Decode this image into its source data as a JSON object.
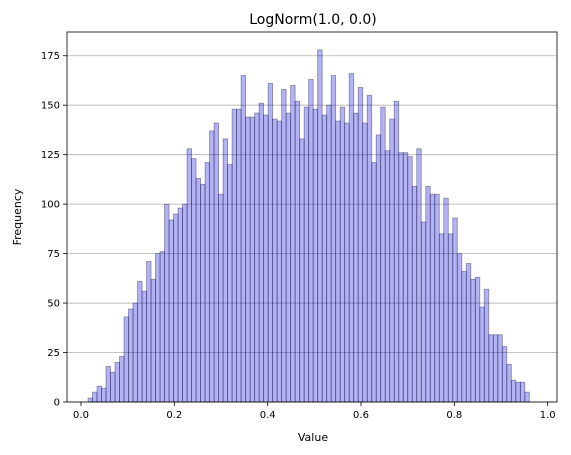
{
  "chart_data": {
    "type": "bar",
    "title": "LogNorm(1.0, 0.0)",
    "xlabel": "Value",
    "ylabel": "Frequency",
    "xlim": [
      -0.03,
      1.02
    ],
    "ylim": [
      0,
      187
    ],
    "x_ticks": [
      0.0,
      0.2,
      0.4,
      0.6,
      0.8,
      1.0
    ],
    "x_tick_labels": [
      "0.0",
      "0.2",
      "0.4",
      "0.6",
      "0.8",
      "1.0"
    ],
    "y_ticks": [
      0,
      25,
      50,
      75,
      100,
      125,
      150,
      175
    ],
    "y_tick_labels": [
      "0",
      "25",
      "50",
      "75",
      "100",
      "125",
      "150",
      "175"
    ],
    "grid": "y",
    "bar_color": "#0000dd",
    "bar_opacity": 0.3,
    "edge_color": "#1a1a40",
    "bin_start": 0.015,
    "bin_width": 0.00965,
    "values": [
      2,
      5,
      8,
      7,
      18,
      15,
      20,
      23,
      43,
      47,
      50,
      61,
      56,
      71,
      62,
      75,
      76,
      100,
      92,
      95,
      98,
      100,
      128,
      123,
      113,
      110,
      121,
      137,
      141,
      105,
      133,
      120,
      148,
      148,
      165,
      144,
      144,
      146,
      151,
      145,
      161,
      143,
      142,
      158,
      146,
      160,
      152,
      133,
      149,
      163,
      148,
      178,
      145,
      150,
      165,
      142,
      149,
      141,
      166,
      146,
      159,
      141,
      155,
      121,
      135,
      149,
      127,
      143,
      152,
      126,
      126,
      124,
      109,
      128,
      91,
      109,
      105,
      105,
      85,
      103,
      85,
      93,
      75,
      66,
      70,
      62,
      63,
      48,
      57,
      34,
      34,
      34,
      28,
      19,
      11,
      10,
      10,
      5
    ]
  }
}
